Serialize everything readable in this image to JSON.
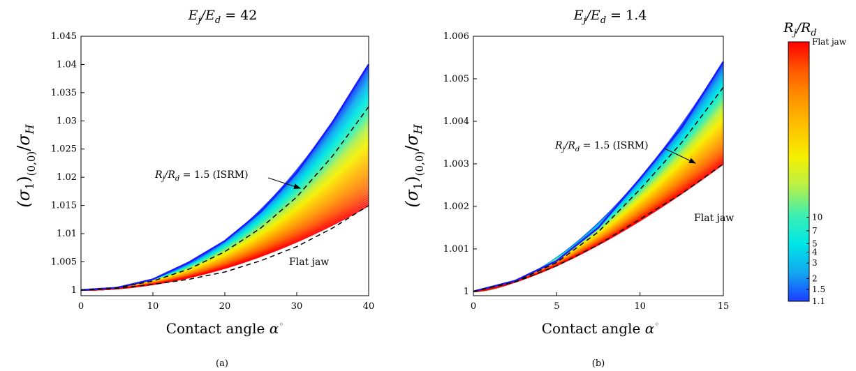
{
  "figure": {
    "colorbar": {
      "title": "R_j/R_d",
      "tick_labels": [
        "Flat jaw",
        "10",
        "7",
        "5",
        "4",
        "3",
        "2",
        "1.5",
        "1.1"
      ],
      "tick_values": [
        1000,
        10,
        7,
        5,
        4,
        3,
        2,
        1.5,
        1.1
      ],
      "colors": [
        "#1a3cff",
        "#12a8f0",
        "#00e6e6",
        "#3cf0b0",
        "#b8f048",
        "#f5f000",
        "#ffc400",
        "#ff9600",
        "#ff5a00",
        "#ff0000"
      ]
    }
  },
  "chart_data": [
    {
      "type": "line",
      "panel_label": "(a)",
      "title": "E_j/E_d = 42",
      "xlabel": "Contact angle α°",
      "ylabel": "(σ1)(0,0)/σH",
      "xlim": [
        0,
        40
      ],
      "ylim": [
        0.999,
        1.045
      ],
      "xticks": [
        0,
        10,
        20,
        30,
        40
      ],
      "xtick_labels": [
        "0",
        "10",
        "20",
        "30",
        "40"
      ],
      "yticks": [
        1,
        1.005,
        1.01,
        1.015,
        1.02,
        1.025,
        1.03,
        1.035,
        1.04,
        1.045
      ],
      "ytick_labels": [
        "1",
        "1.005",
        "1.01",
        "1.015",
        "1.02",
        "1.025",
        "1.03",
        "1.035",
        "1.04",
        "1.045"
      ],
      "grid": false,
      "band": {
        "description_note": "",
        "upper_end": 1.04,
        "lower_end": 1.015,
        "upper_exponent": 2.2,
        "lower_exponent": 1.95
      },
      "series": [
        {
          "name": "R_j/R_d = 1.1",
          "style": "solid",
          "color": "#1a1aff",
          "x": [
            0,
            5,
            10,
            15,
            20,
            25,
            30,
            35,
            40
          ],
          "y": [
            1.0,
            1.0004,
            1.0019,
            1.0049,
            1.0087,
            1.0139,
            1.0208,
            1.0298,
            1.04
          ]
        },
        {
          "name": "R_j/R_d = 1.5 (ISRM)",
          "style": "dashed",
          "color": "#000000",
          "x": [
            0,
            5,
            10,
            15,
            20,
            25,
            30,
            35,
            40
          ],
          "y": [
            1.0,
            1.0004,
            1.0016,
            1.0037,
            1.0068,
            1.011,
            1.0165,
            1.0238,
            1.0325
          ]
        },
        {
          "name": "Flat jaw",
          "style": "dashed",
          "color": "#000000",
          "x": [
            0,
            5,
            10,
            15,
            20,
            25,
            30,
            35,
            40
          ],
          "y": [
            1.0,
            1.0003,
            1.001,
            1.0019,
            1.0032,
            1.0052,
            1.0077,
            1.011,
            1.015
          ]
        }
      ],
      "annotations": [
        {
          "text": "R_j/R_d = 1.5 (ISRM)",
          "target_x": 30.5,
          "target_y": 1.0178
        },
        {
          "text": "Flat jaw"
        }
      ]
    },
    {
      "type": "line",
      "panel_label": "(b)",
      "title": "E_j/E_d = 1.4",
      "xlabel": "Contact angle α°",
      "ylabel": "(σ1)(0,0)/σH",
      "xlim": [
        0,
        15
      ],
      "ylim": [
        0.9999,
        1.006
      ],
      "xticks": [
        0,
        5,
        10,
        15
      ],
      "xtick_labels": [
        "0",
        "5",
        "10",
        "15"
      ],
      "yticks": [
        1,
        1.001,
        1.002,
        1.003,
        1.004,
        1.005,
        1.006
      ],
      "ytick_labels": [
        "1",
        "1.001",
        "1.002",
        "1.003",
        "1.004",
        "1.005",
        "1.006"
      ],
      "grid": false,
      "band": {
        "description_note": "",
        "upper_end": 1.0054,
        "lower_end": 1.003,
        "upper_exponent": 1.75,
        "lower_exponent": 1.45
      },
      "series": [
        {
          "name": "R_j/R_d = 1.1",
          "style": "solid",
          "color": "#1a1aff",
          "x": [
            0,
            2.5,
            5,
            7.5,
            10,
            12.5,
            15
          ],
          "y": [
            1.0,
            1.00025,
            1.00072,
            1.0015,
            1.00265,
            1.00385,
            1.0054
          ]
        },
        {
          "name": "R_j/R_d = 1.5 (ISRM)",
          "style": "dashed",
          "color": "#000000",
          "x": [
            0,
            2.5,
            5,
            7.5,
            10,
            12.5,
            15
          ],
          "y": [
            1.0,
            1.00023,
            1.00068,
            1.0014,
            1.0024,
            1.0035,
            1.0048
          ]
        },
        {
          "name": "Flat jaw",
          "style": "dashed",
          "color": "#000000",
          "x": [
            0,
            2.5,
            5,
            7.5,
            10,
            12.5,
            15
          ],
          "y": [
            1.0,
            1.00022,
            1.0006,
            1.0011,
            1.0017,
            1.0023,
            1.003
          ]
        }
      ],
      "annotations": [
        {
          "text": "R_j/R_d = 1.5 (ISRM)",
          "target_x": 11.6,
          "target_y": 1.00297
        },
        {
          "text": "Flat jaw"
        }
      ]
    }
  ]
}
